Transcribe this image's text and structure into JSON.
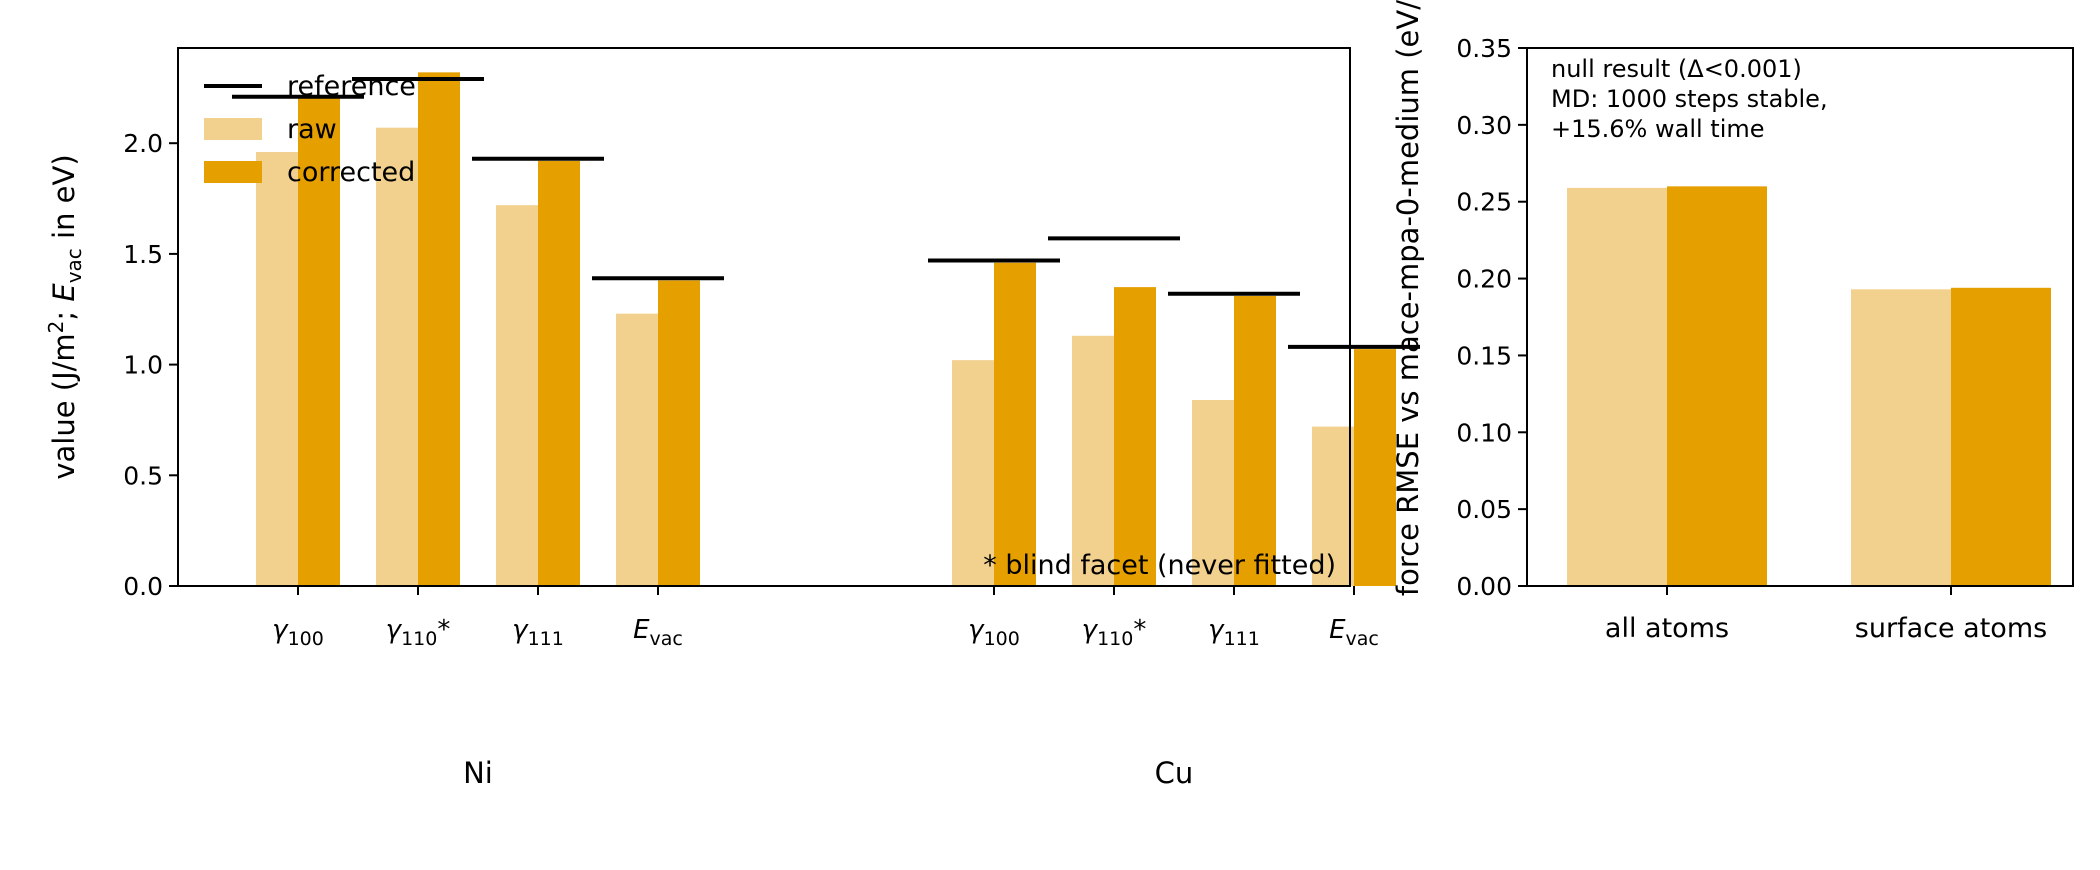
{
  "colors": {
    "raw": "#f2d08d",
    "corrected": "#e5a000",
    "reference": "#000000"
  },
  "chart_data": [
    {
      "type": "bar",
      "ylabel_prefix": "value (J/m",
      "ylabel_sup": "2",
      "ylabel_mid": "; ",
      "ylabel_E": "E",
      "ylabel_sub": "vac",
      "ylabel_suffix": " in eV)",
      "ylim": [
        0,
        2.43
      ],
      "yticks": [
        0.0,
        0.5,
        1.0,
        1.5,
        2.0
      ],
      "ytick_labels": [
        "0.0",
        "0.5",
        "1.0",
        "1.5",
        "2.0"
      ],
      "groups": [
        {
          "label": "Ni",
          "categories": [
            {
              "base": "γ",
              "sub": "100",
              "star": ""
            },
            {
              "base": "γ",
              "sub": "110",
              "star": "*"
            },
            {
              "base": "γ",
              "sub": "111",
              "star": ""
            },
            {
              "base": "E",
              "sub": "vac",
              "star": ""
            }
          ]
        },
        {
          "label": "Cu",
          "categories": [
            {
              "base": "γ",
              "sub": "100",
              "star": ""
            },
            {
              "base": "γ",
              "sub": "110",
              "star": "*"
            },
            {
              "base": "γ",
              "sub": "111",
              "star": ""
            },
            {
              "base": "E",
              "sub": "vac",
              "star": ""
            }
          ]
        }
      ],
      "series": [
        {
          "name": "raw",
          "values": [
            1.96,
            2.07,
            1.72,
            1.23,
            1.02,
            1.13,
            0.84,
            0.72
          ]
        },
        {
          "name": "corrected",
          "values": [
            2.21,
            2.32,
            1.92,
            1.38,
            1.46,
            1.35,
            1.31,
            1.07
          ]
        }
      ],
      "reference": {
        "name": "reference",
        "values": [
          2.21,
          2.29,
          1.93,
          1.39,
          1.47,
          1.57,
          1.32,
          1.08
        ]
      },
      "legend": {
        "placement": "top-left",
        "entries": [
          "reference",
          "raw",
          "corrected"
        ]
      },
      "annotation": "* blind facet (never fitted)"
    },
    {
      "type": "bar",
      "ylabel": "force RMSE vs mace-mpa-0-medium (eV/",
      "ylim": [
        0,
        0.35
      ],
      "yticks": [
        0.0,
        0.05,
        0.1,
        0.15,
        0.2,
        0.25,
        0.3,
        0.35
      ],
      "ytick_labels": [
        "0.00",
        "0.05",
        "0.10",
        "0.15",
        "0.20",
        "0.25",
        "0.30",
        "0.35"
      ],
      "categories": [
        "all atoms",
        "surface atoms"
      ],
      "series": [
        {
          "name": "raw",
          "values": [
            0.259,
            0.193
          ]
        },
        {
          "name": "corrected",
          "values": [
            0.26,
            0.194
          ]
        }
      ],
      "annotation_lines": [
        "null result (Δ<0.001)",
        "MD: 1000 steps stable,",
        "+15.6% wall time"
      ]
    }
  ]
}
